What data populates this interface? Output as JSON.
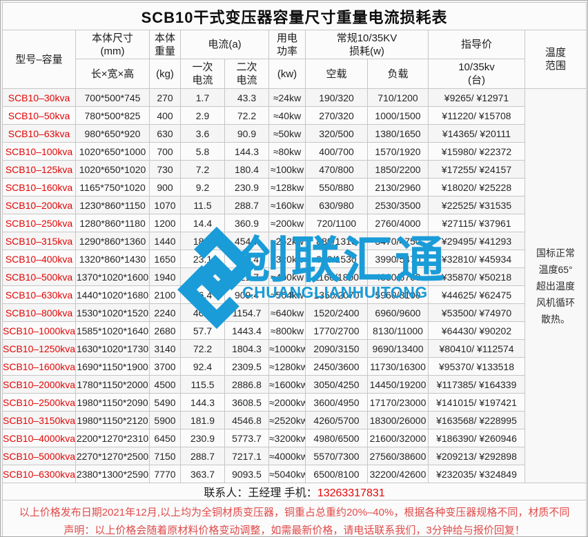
{
  "title": "SCB10干式变压器容量尺寸重量电流损耗表",
  "header": {
    "model": "型号–容量",
    "size_line1": "本体尺寸",
    "size_line2": "(mm)",
    "size_sub": "长×宽×高",
    "weight_line1": "本体",
    "weight_line2": "重量",
    "weight_sub": "(kg)",
    "current_group": "电流(a)",
    "primary_line1": "一次",
    "primary_line2": "电流",
    "secondary_line1": "二次",
    "secondary_line2": "电流",
    "power_line1": "用电",
    "power_line2": "功率",
    "power_sub": "(kw)",
    "loss_group_line1": "常规10/35KV",
    "loss_group_line2": "损耗(w)",
    "noload": "空载",
    "load": "负载",
    "price_group": "指导价",
    "price_sub_line1": "10/35kv",
    "price_sub_line2": "(台)",
    "temp_line1": "温度",
    "temp_line2": "范围"
  },
  "rows": [
    {
      "model": "SCB10–30kva",
      "size": "700*500*745",
      "weight": "270",
      "primary": "1.7",
      "secondary": "43.3",
      "power": "≈24kw",
      "noload": "190/320",
      "load": "710/1200",
      "price": "¥9265/ ¥12971"
    },
    {
      "model": "SCB10–50kva",
      "size": "780*500*825",
      "weight": "400",
      "primary": "2.9",
      "secondary": "72.2",
      "power": "≈40kw",
      "noload": "270/320",
      "load": "1000/1500",
      "price": "¥11220/ ¥15708"
    },
    {
      "model": "SCB10–63kva",
      "size": "980*650*920",
      "weight": "630",
      "primary": "3.6",
      "secondary": "90.9",
      "power": "≈50kw",
      "noload": "320/500",
      "load": "1380/1650",
      "price": "¥14365/ ¥20111"
    },
    {
      "model": "SCB10–100kva",
      "size": "1020*650*1000",
      "weight": "700",
      "primary": "5.8",
      "secondary": "144.3",
      "power": "≈80kw",
      "noload": "400/700",
      "load": "1570/1920",
      "price": "¥15980/ ¥22372"
    },
    {
      "model": "SCB10–125kva",
      "size": "1020*650*1020",
      "weight": "730",
      "primary": "7.2",
      "secondary": "180.4",
      "power": "≈100kw",
      "noload": "470/800",
      "load": "1850/2200",
      "price": "¥17255/ ¥24157"
    },
    {
      "model": "SCB10–160kva",
      "size": "1165*750*1020",
      "weight": "900",
      "primary": "9.2",
      "secondary": "230.9",
      "power": "≈128kw",
      "noload": "550/880",
      "load": "2130/2960",
      "price": "¥18020/ ¥25228"
    },
    {
      "model": "SCB10–200kva",
      "size": "1230*860*1150",
      "weight": "1070",
      "primary": "11.5",
      "secondary": "288.7",
      "power": "≈160kw",
      "noload": "630/980",
      "load": "2530/3500",
      "price": "¥22525/ ¥31535"
    },
    {
      "model": "SCB10–250kva",
      "size": "1280*860*1180",
      "weight": "1200",
      "primary": "14.4",
      "secondary": "360.9",
      "power": "≈200kw",
      "noload": "720/1100",
      "load": "2760/4000",
      "price": "¥27115/ ¥37961"
    },
    {
      "model": "SCB10–315kva",
      "size": "1290*860*1360",
      "weight": "1440",
      "primary": "18.2",
      "secondary": "454.7",
      "power": "≈252kw",
      "noload": "880/1310",
      "load": "3470/4750",
      "price": "¥29495/ ¥41293"
    },
    {
      "model": "SCB10–400kva",
      "size": "1320*860*1430",
      "weight": "1650",
      "primary": "23.1",
      "secondary": "577.4",
      "power": "≈320kw",
      "noload": "980/1530",
      "load": "3990/5470",
      "price": "¥32810/ ¥45934"
    },
    {
      "model": "SCB10–500kva",
      "size": "1370*1020*1600",
      "weight": "1940",
      "primary": "28.9",
      "secondary": "721.7",
      "power": "≈400kw",
      "noload": "1160/1800",
      "load": "4880/6760",
      "price": "¥35870/ ¥50218"
    },
    {
      "model": "SCB10–630kva",
      "size": "1440*1020*1680",
      "weight": "2100",
      "primary": "36.4",
      "secondary": "909.4",
      "power": "≈504kw",
      "noload": "1350/2070",
      "load": "5960/8100",
      "price": "¥44625/ ¥62475"
    },
    {
      "model": "SCB10–800kva",
      "size": "1530*1020*1520",
      "weight": "2240",
      "primary": "46.2",
      "secondary": "1154.7",
      "power": "≈640kw",
      "noload": "1520/2400",
      "load": "6960/9600",
      "price": "¥53500/ ¥74970"
    },
    {
      "model": "SCB10–1000kva",
      "size": "1585*1020*1640",
      "weight": "2680",
      "primary": "57.7",
      "secondary": "1443.4",
      "power": "≈800kw",
      "noload": "1770/2700",
      "load": "8130/11000",
      "price": "¥64430/ ¥90202"
    },
    {
      "model": "SCB10–1250kva",
      "size": "1630*1020*1730",
      "weight": "3140",
      "primary": "72.2",
      "secondary": "1804.3",
      "power": "≈1000kw",
      "noload": "2090/3150",
      "load": "9690/13400",
      "price": "¥80410/ ¥112574"
    },
    {
      "model": "SCB10–1600kva",
      "size": "1690*1150*1900",
      "weight": "3700",
      "primary": "92.4",
      "secondary": "2309.5",
      "power": "≈1280kw",
      "noload": "2450/3600",
      "load": "11730/16300",
      "price": "¥95370/ ¥133518"
    },
    {
      "model": "SCB10–2000kva",
      "size": "1780*1150*2000",
      "weight": "4500",
      "primary": "115.5",
      "secondary": "2886.8",
      "power": "≈1600kw",
      "noload": "3050/4250",
      "load": "14450/19200",
      "price": "¥117385/ ¥164339"
    },
    {
      "model": "SCB10–2500kva",
      "size": "1980*1150*2090",
      "weight": "5490",
      "primary": "144.3",
      "secondary": "3608.5",
      "power": "≈2000kw",
      "noload": "3600/4950",
      "load": "17170/23000",
      "price": "¥141015/ ¥197421"
    },
    {
      "model": "SCB10–3150kva",
      "size": "1980*1150*2120",
      "weight": "5900",
      "primary": "181.9",
      "secondary": "4546.8",
      "power": "≈2520kw",
      "noload": "4260/5700",
      "load": "18300/26000",
      "price": "¥163568/ ¥228995"
    },
    {
      "model": "SCB10–4000kva",
      "size": "2200*1270*2310",
      "weight": "6450",
      "primary": "230.9",
      "secondary": "5773.7",
      "power": "≈3200kw",
      "noload": "4980/6500",
      "load": "21600/32000",
      "price": "¥186390/ ¥260946"
    },
    {
      "model": "SCB10–5000kva",
      "size": "2270*1270*2500",
      "weight": "7150",
      "primary": "288.7",
      "secondary": "7217.1",
      "power": "≈4000kw",
      "noload": "5570/7300",
      "load": "27560/38600",
      "price": "¥209213/ ¥292898"
    },
    {
      "model": "SCB10–6300kva",
      "size": "2380*1300*2590",
      "weight": "7770",
      "primary": "363.7",
      "secondary": "9093.5",
      "power": "≈5040kw",
      "noload": "6500/8100",
      "load": "32200/42600",
      "price": "¥232035/ ¥324849"
    }
  ],
  "temp_note_lines": [
    "国标正常",
    "温度65°",
    "超出温度",
    "风机循环",
    "散热。"
  ],
  "watermark": {
    "cn": "创联汇通",
    "en": "CHUANGLIANHUITONG",
    "color": "#1a9cd8"
  },
  "contact": {
    "label": "联系人：王经理  手机：",
    "phone": "13263317831"
  },
  "disclaimer": {
    "line1": "以上价格发布日期2021年12月,以上均为全铜材质变压器，铜重占总重约20%–40%，根据各种变压器规格不同，材质不同",
    "line2": "声明：以上价格会随着原材料价格变动调整，如需最新价格，请电话联系我们，3分钟给与报价回复！"
  },
  "colors": {
    "model_red": "#e30505",
    "disclaimer_red": "#e14a4a",
    "watermark_blue": "#1a9cd8",
    "border_gray": "#c6c6c6"
  }
}
